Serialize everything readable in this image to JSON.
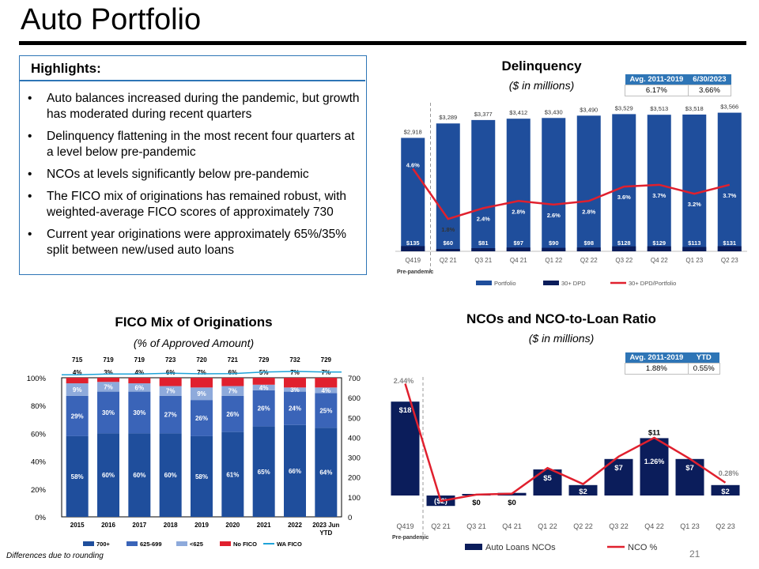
{
  "page": {
    "title": "Auto Portfolio",
    "footnote": "Differences due to rounding",
    "page_number": "21"
  },
  "highlights": {
    "heading": "Highlights:",
    "items": [
      "Auto balances increased during the pandemic, but growth has moderated during recent quarters",
      "Delinquency flattening in the most recent four quarters at a level below pre-pandemic",
      "NCOs at levels significantly below pre-pandemic",
      "The FICO mix of originations has remained robust, with weighted-average FICO scores of approximately 730",
      "Current year originations were approximately 65%/35% split between new/used auto loans"
    ]
  },
  "colors": {
    "navy": "#0b1d5b",
    "blue": "#1f4e9c",
    "mid_blue": "#3a64b8",
    "light_blue": "#8eaadb",
    "red": "#e0202e",
    "cyan": "#1fa3d8",
    "header_blue": "#2e75b6"
  },
  "chart_data": [
    {
      "id": "delinquency",
      "type": "bar",
      "title": "Delinquency",
      "subtitle": "($ in millions)",
      "categories": [
        "Q419",
        "Q2 21",
        "Q3 21",
        "Q4 21",
        "Q1 22",
        "Q2 22",
        "Q3 22",
        "Q4 22",
        "Q1 23",
        "Q2 23"
      ],
      "category_note": "Pre-pandemic",
      "ylim": [
        0,
        3700
      ],
      "series": [
        {
          "name": "Portfolio",
          "values": [
            2918,
            3289,
            3377,
            3412,
            3430,
            3490,
            3529,
            3513,
            3518,
            3566
          ],
          "labels": [
            "$2,918",
            "$3,289",
            "$3,377",
            "$3,412",
            "$3,430",
            "$3,490",
            "$3,529",
            "$3,513",
            "$3,518",
            "$3,566"
          ]
        },
        {
          "name": "30+ DPD",
          "values": [
            135,
            60,
            81,
            97,
            90,
            98,
            128,
            129,
            113,
            131
          ],
          "labels": [
            "$135",
            "$60",
            "$81",
            "$97",
            "$90",
            "$98",
            "$128",
            "$129",
            "$113",
            "$131"
          ]
        },
        {
          "name": "30+ DPD/Portfolio",
          "values": [
            4.6,
            1.8,
            2.4,
            2.8,
            2.6,
            2.8,
            3.6,
            3.7,
            3.2,
            3.7
          ],
          "labels": [
            "4.6%",
            "1.8%",
            "2.4%",
            "2.8%",
            "2.6%",
            "2.8%",
            "3.6%",
            "3.7%",
            "3.2%",
            "3.7%"
          ],
          "ylim": [
            0,
            8
          ]
        }
      ],
      "stat_table": {
        "headers": [
          "Avg. 2011-2019",
          "6/30/2023"
        ],
        "values": [
          "6.17%",
          "3.66%"
        ]
      }
    },
    {
      "id": "fico",
      "type": "bar",
      "title": "FICO Mix of Originations",
      "subtitle": "(% of Approved Amount)",
      "categories": [
        "2015",
        "2016",
        "2017",
        "2018",
        "2019",
        "2020",
        "2021",
        "2022",
        "2023 Jun YTD"
      ],
      "y_ticks": [
        "0%",
        "20%",
        "40%",
        "60%",
        "80%",
        "100%"
      ],
      "y2_ticks": [
        "0",
        "100",
        "200",
        "300",
        "400",
        "500",
        "600",
        "700"
      ],
      "y2lim": [
        0,
        700
      ],
      "series": [
        {
          "name": "700+",
          "values": [
            58,
            60,
            60,
            60,
            58,
            61,
            65,
            66,
            64
          ]
        },
        {
          "name": "625-699",
          "values": [
            29,
            30,
            30,
            27,
            26,
            26,
            26,
            24,
            25
          ]
        },
        {
          "name": "<625",
          "values": [
            9,
            7,
            6,
            7,
            9,
            7,
            4,
            3,
            4
          ]
        },
        {
          "name": "No FICO",
          "values": [
            4,
            3,
            4,
            6,
            7,
            6,
            5,
            7,
            7
          ]
        },
        {
          "name": "WA FICO",
          "values": [
            715,
            719,
            719,
            723,
            720,
            721,
            729,
            732,
            729
          ]
        }
      ]
    },
    {
      "id": "nco",
      "type": "bar",
      "title": "NCOs and NCO-to-Loan Ratio",
      "subtitle": "($ in millions)",
      "categories": [
        "Q419",
        "Q2 21",
        "Q3 21",
        "Q4 21",
        "Q1 22",
        "Q2 22",
        "Q3 22",
        "Q4 22",
        "Q1 23",
        "Q2 23"
      ],
      "category_note": "Pre-pandemic",
      "series": [
        {
          "name": "Auto Loans NCOs",
          "values": [
            18,
            -2,
            0.3,
            0.5,
            5,
            2,
            7,
            11,
            7,
            2
          ],
          "labels": [
            "$18",
            "($2)",
            "$0",
            "$0",
            "$5",
            "$2",
            "$7",
            "$11",
            "$7",
            "$2"
          ]
        },
        {
          "name": "NCO %",
          "values": [
            2.44,
            -0.12,
            0.02,
            0.04,
            0.6,
            0.25,
            0.85,
            1.26,
            0.8,
            0.28
          ]
        }
      ],
      "line_labels": {
        "first": "2.44%",
        "peak": "1.26%",
        "last": "0.28%"
      },
      "stat_table": {
        "headers": [
          "Avg. 2011-2019",
          "YTD"
        ],
        "values": [
          "1.88%",
          "0.55%"
        ]
      }
    }
  ]
}
